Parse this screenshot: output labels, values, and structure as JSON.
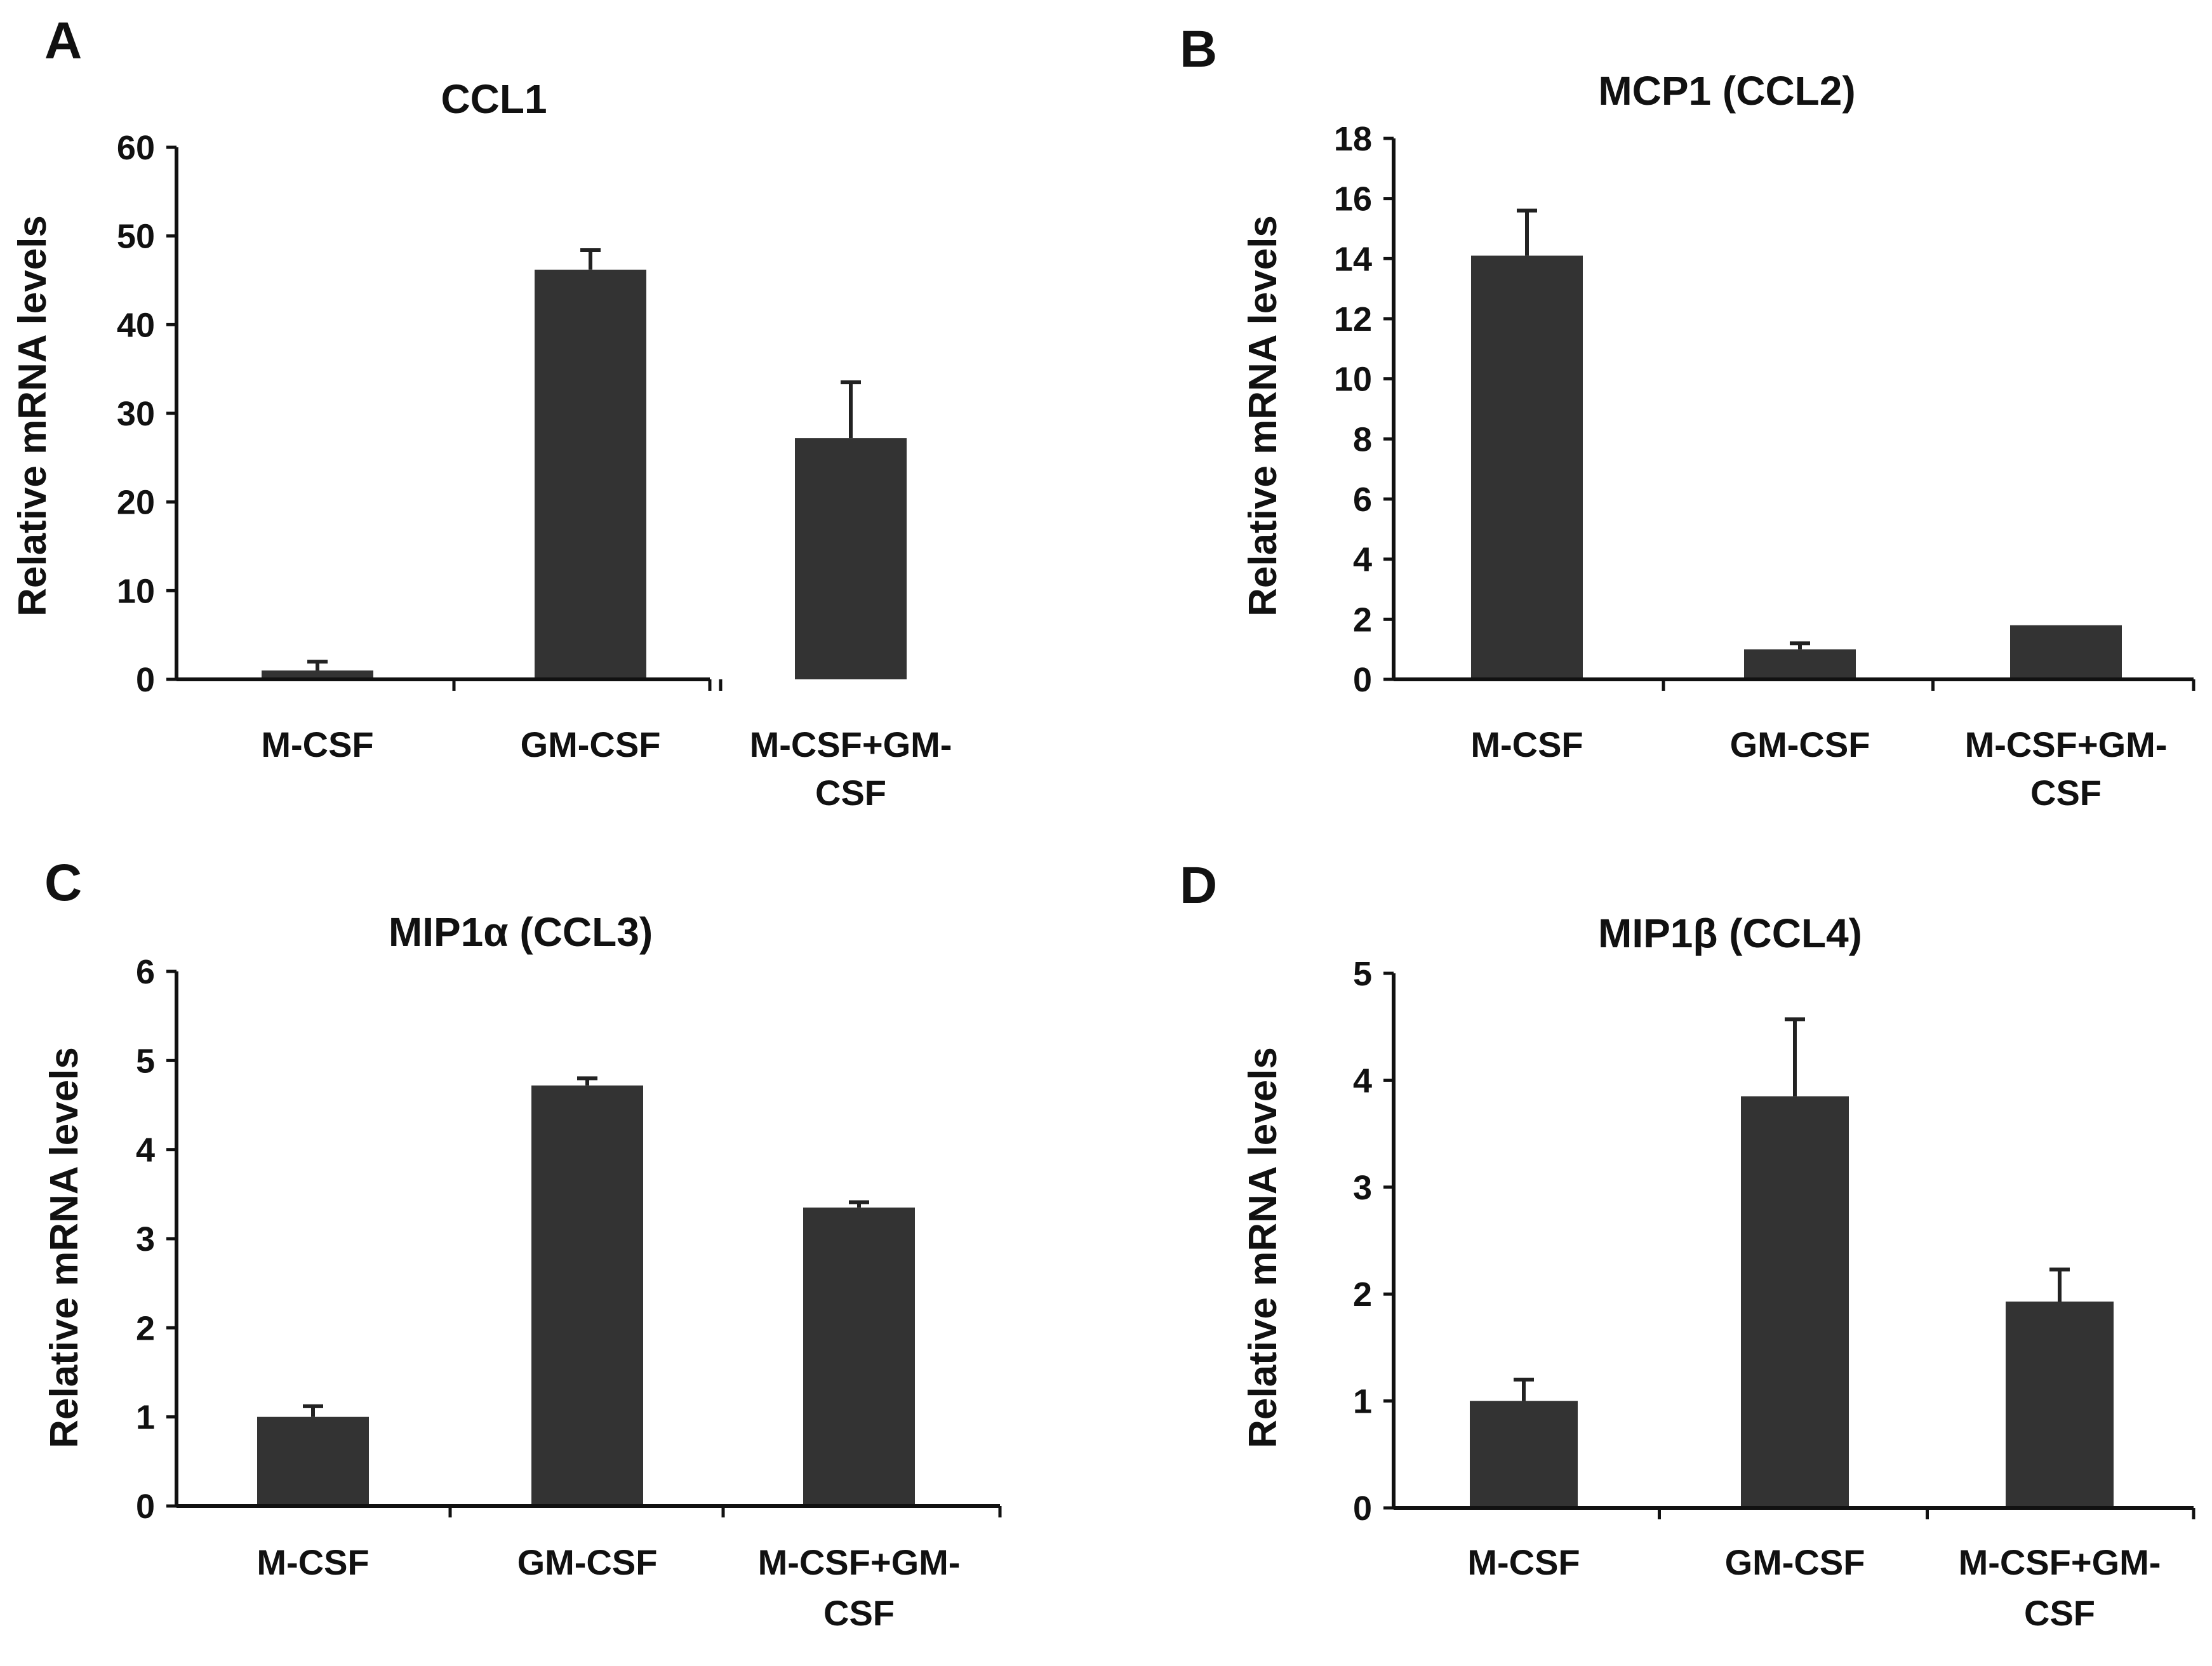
{
  "colors": {
    "bar": "#333333",
    "axis": "#111111",
    "text": "#111111",
    "background": "#ffffff"
  },
  "chart_data": [
    {
      "type": "bar",
      "panel": "A",
      "title": "CCL1",
      "xlabel": "",
      "ylabel": "Relative mRNA levels",
      "categories": [
        [
          "M-CSF"
        ],
        [
          "GM-CSF"
        ],
        [
          "M-CSF+GM-",
          "CSF"
        ]
      ],
      "values": [
        1,
        46.2,
        27.2
      ],
      "errors": [
        1,
        2.2,
        6.3
      ],
      "ylim": [
        0,
        60
      ],
      "yticks": [
        0,
        10,
        20,
        30,
        40,
        50,
        60
      ],
      "grid": false
    },
    {
      "type": "bar",
      "panel": "B",
      "title": "MCP1 (CCL2)",
      "xlabel": "",
      "ylabel": "Relative mRNA levels",
      "categories": [
        [
          "M-CSF"
        ],
        [
          "GM-CSF"
        ],
        [
          "M-CSF+GM-",
          "CSF"
        ]
      ],
      "values": [
        14.1,
        1,
        1.8
      ],
      "errors": [
        1.5,
        0.2,
        0
      ],
      "ylim": [
        0,
        18
      ],
      "yticks": [
        0,
        2,
        4,
        6,
        8,
        10,
        12,
        14,
        16,
        18
      ],
      "grid": false
    },
    {
      "type": "bar",
      "panel": "C",
      "title": "MIP1α (CCL3)",
      "xlabel": "",
      "ylabel": "Relative mRNA levels",
      "categories": [
        [
          "M-CSF"
        ],
        [
          "GM-CSF"
        ],
        [
          "M-CSF+GM-",
          "CSF"
        ]
      ],
      "values": [
        1,
        4.72,
        3.35
      ],
      "errors": [
        0.12,
        0.08,
        0.06
      ],
      "ylim": [
        0,
        6
      ],
      "yticks": [
        0,
        1,
        2,
        3,
        4,
        5,
        6
      ],
      "grid": false
    },
    {
      "type": "bar",
      "panel": "D",
      "title": "MIP1β (CCL4)",
      "xlabel": "",
      "ylabel": "Relative mRNA levels",
      "categories": [
        [
          "M-CSF"
        ],
        [
          "GM-CSF"
        ],
        [
          "M-CSF+GM-",
          "CSF"
        ]
      ],
      "values": [
        1,
        3.85,
        1.93
      ],
      "errors": [
        0.2,
        0.72,
        0.3
      ],
      "ylim": [
        0,
        5
      ],
      "yticks": [
        0,
        1,
        2,
        3,
        4,
        5
      ],
      "grid": false
    }
  ]
}
